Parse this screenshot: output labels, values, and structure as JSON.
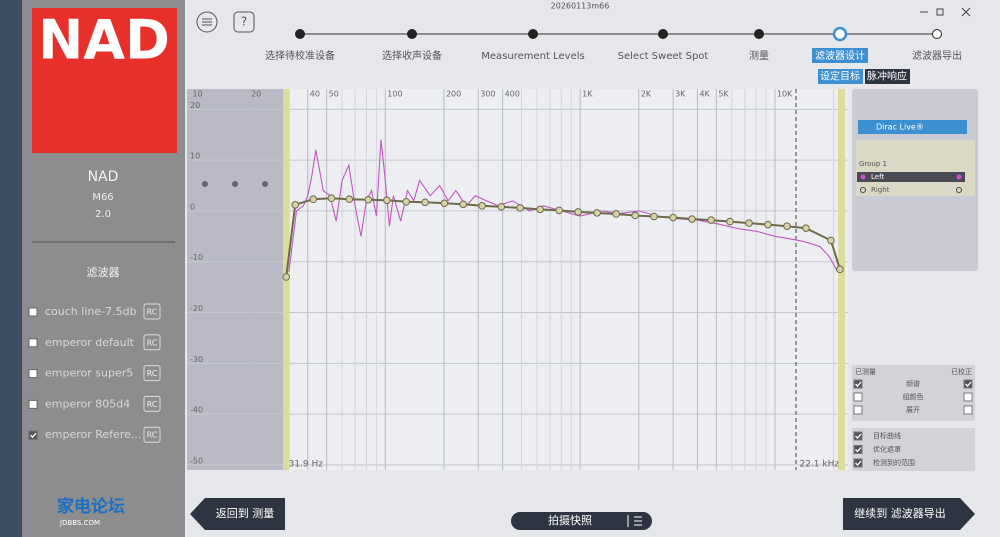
{
  "window_title": "20260113m66",
  "help": "?",
  "device": {
    "brand": "NAD",
    "model": "M66",
    "version": "2.0"
  },
  "sidebar": {
    "section": "滤波器",
    "filters": [
      {
        "name": "couch line-7.5db",
        "checked": false,
        "tag": "RC"
      },
      {
        "name": "emperor default",
        "checked": false,
        "tag": "RC"
      },
      {
        "name": "emperor super5",
        "checked": false,
        "tag": "RC"
      },
      {
        "name": "emperor 805d4",
        "checked": false,
        "tag": "RC"
      },
      {
        "name": "emperor Refere...",
        "checked": true,
        "tag": "RC"
      }
    ]
  },
  "steps": [
    "选择待校准设备",
    "选择收声设备",
    "Measurement Levels",
    "Select Sweet Spot",
    "测量",
    "滤波器设计",
    "滤波器导出"
  ],
  "active_step": 5,
  "tabs": [
    "设定目标",
    "脉冲响应"
  ],
  "chart_data": {
    "type": "line",
    "xscale": "log",
    "xlim": [
      9.6,
      23700
    ],
    "ylim": [
      -51,
      24
    ],
    "xticks": [
      10,
      20,
      40,
      50,
      100,
      200,
      300,
      400,
      {
        "value": 1000,
        "label": "1K"
      },
      {
        "value": 2000,
        "label": "2K"
      },
      {
        "value": 3000,
        "label": "3K"
      },
      {
        "value": 4000,
        "label": "4K"
      },
      {
        "value": 5000,
        "label": "5K"
      },
      {
        "value": 10000,
        "label": "10K"
      }
    ],
    "minor_xticks": [
      30,
      60,
      70,
      80,
      90,
      500,
      600,
      700,
      800,
      900,
      6000,
      7000,
      8000,
      9000,
      20000
    ],
    "yticks": [
      20,
      10,
      0,
      -10,
      -20,
      -30,
      -40,
      -50
    ],
    "grid": true,
    "range": {
      "low": {
        "value": 31.9,
        "label": "31.9 Hz"
      },
      "high": {
        "value": 22100,
        "label": "22.1 kHz"
      }
    },
    "series": [
      {
        "color": "#c455c4",
        "x": [
          32,
          35,
          38,
          40,
          42,
          44,
          46,
          48,
          52,
          56,
          60,
          65,
          70,
          75,
          80,
          85,
          90,
          95,
          100,
          105,
          110,
          120,
          130,
          140,
          150,
          170,
          190,
          210,
          230,
          260,
          290,
          330,
          380,
          450,
          550,
          650,
          800,
          1000,
          1300,
          1600,
          2000,
          2500,
          3000,
          4000,
          5000,
          6500,
          8000,
          10000,
          12000,
          14000,
          17000,
          19000,
          21000
        ],
        "values": [
          -12,
          0,
          1,
          3,
          7,
          12,
          8,
          4,
          3,
          -2,
          6,
          9,
          1,
          -5,
          2,
          4,
          -1,
          14,
          6,
          -3,
          3,
          -2,
          4,
          2,
          6,
          3,
          5,
          2,
          4,
          1,
          3,
          2,
          1,
          2,
          0,
          1,
          0,
          -1,
          0,
          -0.5,
          0,
          -1,
          -1.5,
          -1.8,
          -2.5,
          -3.5,
          -4,
          -5,
          -5.5,
          -6,
          -7,
          -9,
          -12
        ]
      },
      {
        "color": "#6e6a4a",
        "markers": true,
        "x": [
          31,
          34.5,
          42.7,
          52.9,
          65.4,
          81.8,
          102,
          128,
          160,
          201,
          251,
          314,
          394,
          492,
          623,
          780,
          977,
          1222,
          1531,
          1915,
          2395,
          3000,
          3750,
          4700,
          5875,
          7360,
          9205,
          11530,
          14420,
          19370,
          21540
        ],
        "values": [
          -13,
          1.2,
          2.3,
          2.5,
          2.3,
          2.2,
          2.1,
          1.8,
          1.7,
          1.5,
          1.3,
          1.0,
          0.8,
          0.6,
          0.3,
          0.1,
          -0.2,
          -0.4,
          -0.6,
          -0.9,
          -1.1,
          -1.3,
          -1.6,
          -1.8,
          -2.1,
          -2.4,
          -2.7,
          -3.0,
          -3.4,
          -5.8,
          -11.5
        ]
      }
    ]
  },
  "panel": {
    "system": "Dirac Live®",
    "group": "Group 1",
    "channels": [
      "Left",
      "Right"
    ],
    "view_header": [
      "已测量",
      "已校正"
    ],
    "view_rows": [
      {
        "label": "频谱",
        "measured": true,
        "corrected": true
      },
      {
        "label": "组颜色",
        "measured": false,
        "corrected": false
      },
      {
        "label": "展开",
        "measured": false,
        "corrected": false
      }
    ],
    "options": [
      {
        "label": "目标曲线",
        "checked": true
      },
      {
        "label": "优化遮罩",
        "checked": true
      },
      {
        "label": "检测到的范围",
        "checked": true
      }
    ]
  },
  "buttons": {
    "back": "返回到 测量",
    "snapshot": "拍摄快照",
    "next": "继续到 滤波器导出"
  },
  "watermark": {
    "title": "家电论坛",
    "site": "JDBBS.COM"
  }
}
